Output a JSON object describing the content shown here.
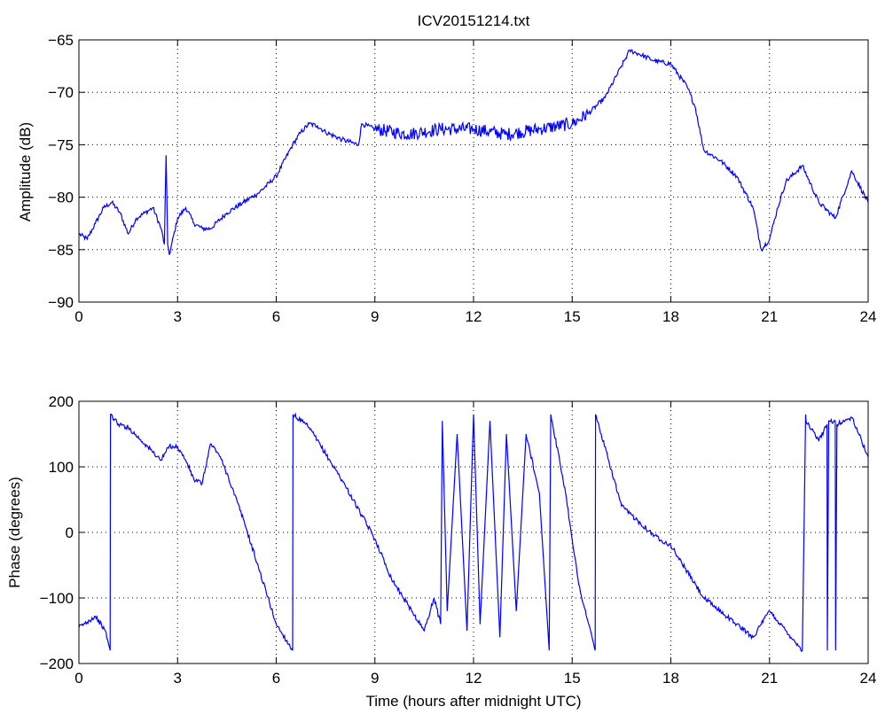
{
  "chart_data": [
    {
      "type": "line",
      "title": "ICV20151214.txt",
      "xlabel": "",
      "ylabel": "Amplitude (dB)",
      "xlim": [
        0,
        24
      ],
      "ylim": [
        -90,
        -65
      ],
      "xticks": [
        "0",
        "3",
        "6",
        "9",
        "12",
        "15",
        "18",
        "21",
        "24"
      ],
      "yticks": [
        "-90",
        "-85",
        "-80",
        "-75",
        "-70",
        "-65"
      ],
      "grid": true,
      "line_color": "#0000ff",
      "series": [
        {
          "x": [
            0,
            0.25,
            0.5,
            0.75,
            1.0,
            1.25,
            1.5,
            1.75,
            2.0,
            2.25,
            2.5,
            2.6,
            2.65,
            2.7,
            2.75,
            3.0,
            3.25,
            3.5,
            3.75,
            4.0,
            4.5,
            5.0,
            5.5,
            6.0,
            6.5,
            6.75,
            7.0,
            7.25,
            7.5,
            8.0,
            8.5,
            8.6,
            9.0,
            10.0,
            11.0,
            12.0,
            13.0,
            14.0,
            15.0,
            15.5,
            16.0,
            16.5,
            16.75,
            17.0,
            17.5,
            18.0,
            18.5,
            18.75,
            19.0,
            19.5,
            20.0,
            20.5,
            20.75,
            21.0,
            21.25,
            21.5,
            22.0,
            22.5,
            23.0,
            23.5,
            24.0
          ],
          "y": [
            -83.5,
            -84,
            -82.5,
            -81,
            -80.5,
            -81.5,
            -83.5,
            -82,
            -81.5,
            -81,
            -83,
            -84.5,
            -76,
            -84.5,
            -85.5,
            -82,
            -81,
            -82.5,
            -83,
            -83,
            -81.5,
            -80.5,
            -79.5,
            -78,
            -75,
            -73.8,
            -73,
            -73.2,
            -73.8,
            -74.5,
            -75,
            -73,
            -73.5,
            -74,
            -73.5,
            -73.5,
            -74,
            -73.5,
            -73,
            -72,
            -70.5,
            -67.5,
            -66,
            -66.3,
            -67,
            -67.3,
            -69.5,
            -71.5,
            -75.5,
            -76.5,
            -78,
            -81,
            -85,
            -84,
            -81,
            -78.5,
            -77,
            -80.5,
            -82,
            -77.5,
            -80.5
          ]
        }
      ]
    },
    {
      "type": "line",
      "title": "",
      "xlabel": "Time (hours after midnight UTC)",
      "ylabel": "Phase (degrees)",
      "xlim": [
        0,
        24
      ],
      "ylim": [
        -200,
        200
      ],
      "xticks": [
        "0",
        "3",
        "6",
        "9",
        "12",
        "15",
        "18",
        "21",
        "24"
      ],
      "yticks": [
        "-200",
        "-100",
        "0",
        "100",
        "200"
      ],
      "grid": true,
      "line_color": "#0000ff",
      "series": [
        {
          "x": [
            0,
            0.5,
            0.8,
            0.95,
            0.96,
            1.2,
            1.5,
            2.0,
            2.5,
            2.75,
            3.0,
            3.25,
            3.5,
            3.75,
            4.0,
            4.25,
            4.5,
            5.0,
            5.5,
            6.0,
            6.5,
            6.51,
            7.0,
            8.0,
            9.0,
            9.5,
            10.0,
            10.5,
            10.8,
            11.0,
            11.05,
            11.2,
            11.5,
            11.8,
            12.0,
            12.2,
            12.5,
            12.8,
            13.0,
            13.3,
            13.6,
            14.0,
            14.3,
            14.35,
            14.8,
            15.2,
            15.5,
            15.7,
            15.71,
            16.5,
            17.5,
            18.0,
            19.0,
            20.0,
            20.5,
            21.0,
            21.5,
            22.0,
            22.1,
            22.11,
            22.5,
            22.75,
            22.76,
            22.8,
            23.0,
            23.01,
            23.05,
            23.5,
            23.8,
            24.0
          ],
          "y": [
            -145,
            -128,
            -150,
            -180,
            180,
            165,
            160,
            135,
            110,
            132,
            130,
            110,
            80,
            75,
            135,
            120,
            90,
            20,
            -60,
            -140,
            -180,
            180,
            160,
            80,
            -10,
            -70,
            -110,
            -150,
            -100,
            -140,
            170,
            -120,
            150,
            -150,
            180,
            -140,
            170,
            -160,
            150,
            -120,
            150,
            60,
            -180,
            180,
            60,
            -80,
            -140,
            -180,
            180,
            40,
            -5,
            -20,
            -100,
            -140,
            -160,
            -120,
            -150,
            -180,
            180,
            170,
            140,
            165,
            -180,
            170,
            170,
            -180,
            165,
            175,
            140,
            115
          ]
        }
      ]
    }
  ]
}
